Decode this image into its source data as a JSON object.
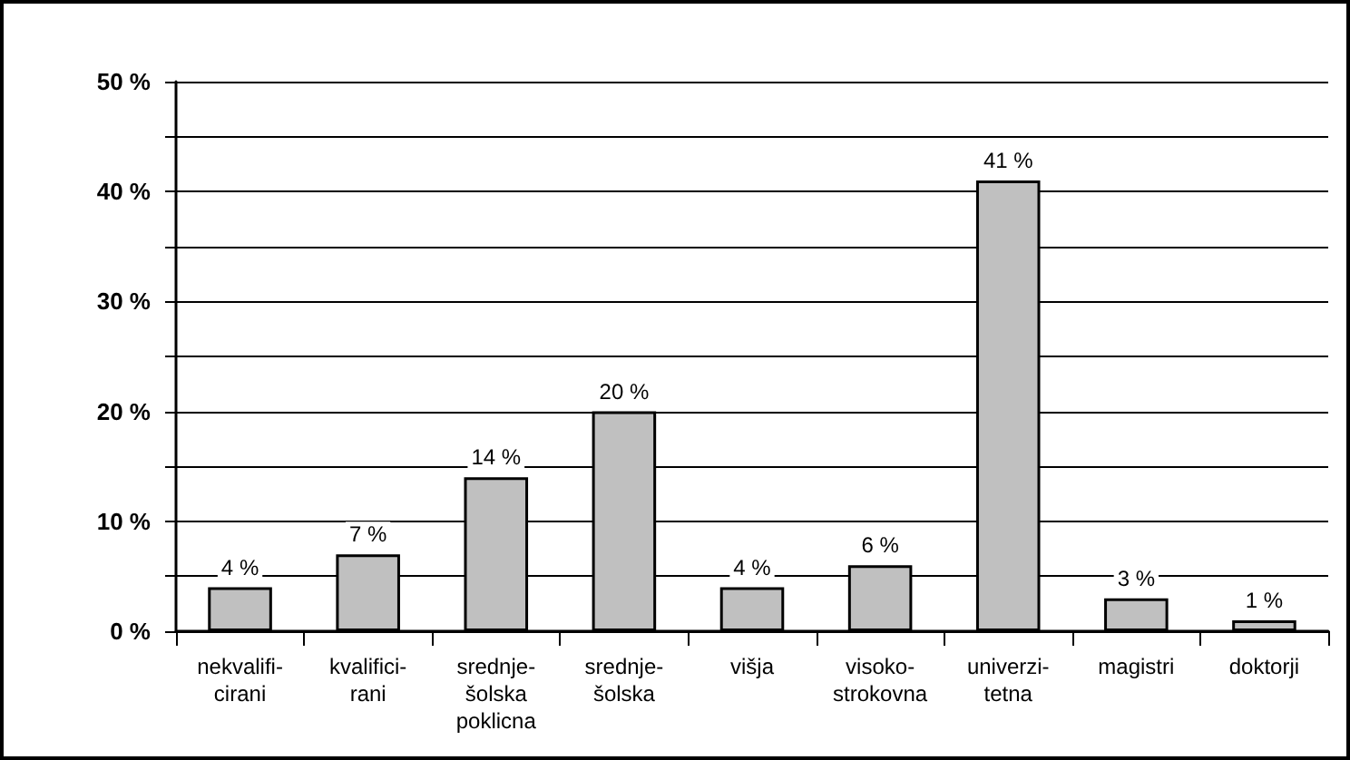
{
  "chart_data": {
    "type": "bar",
    "categories": [
      "nekvalifi-\ncirani",
      "kvalifici-\nrani",
      "srednje-\nšolska\npoklicna",
      "srednje-\nšolska",
      "višja",
      "visoko-\nstrokovna",
      "univerzi-\ntetna",
      "magistri",
      "doktorji"
    ],
    "values": [
      4,
      7,
      14,
      20,
      4,
      6,
      41,
      3,
      1
    ],
    "value_labels": [
      "4 %",
      "7 %",
      "14 %",
      "20 %",
      "4 %",
      "6 %",
      "41 %",
      "3 %",
      "1 %"
    ],
    "color": "#c0c0c0",
    "ylim": [
      0,
      50
    ],
    "yticks": [
      {
        "value": 0,
        "label": "0 %"
      },
      {
        "value": 5,
        "label": null
      },
      {
        "value": 10,
        "label": "10 %"
      },
      {
        "value": 15,
        "label": null
      },
      {
        "value": 20,
        "label": "20 %"
      },
      {
        "value": 25,
        "label": null
      },
      {
        "value": 30,
        "label": "30 %"
      },
      {
        "value": 35,
        "label": null
      },
      {
        "value": 40,
        "label": "40 %"
      },
      {
        "value": 45,
        "label": null
      },
      {
        "value": 50,
        "label": "50 %"
      }
    ],
    "grid": true
  }
}
